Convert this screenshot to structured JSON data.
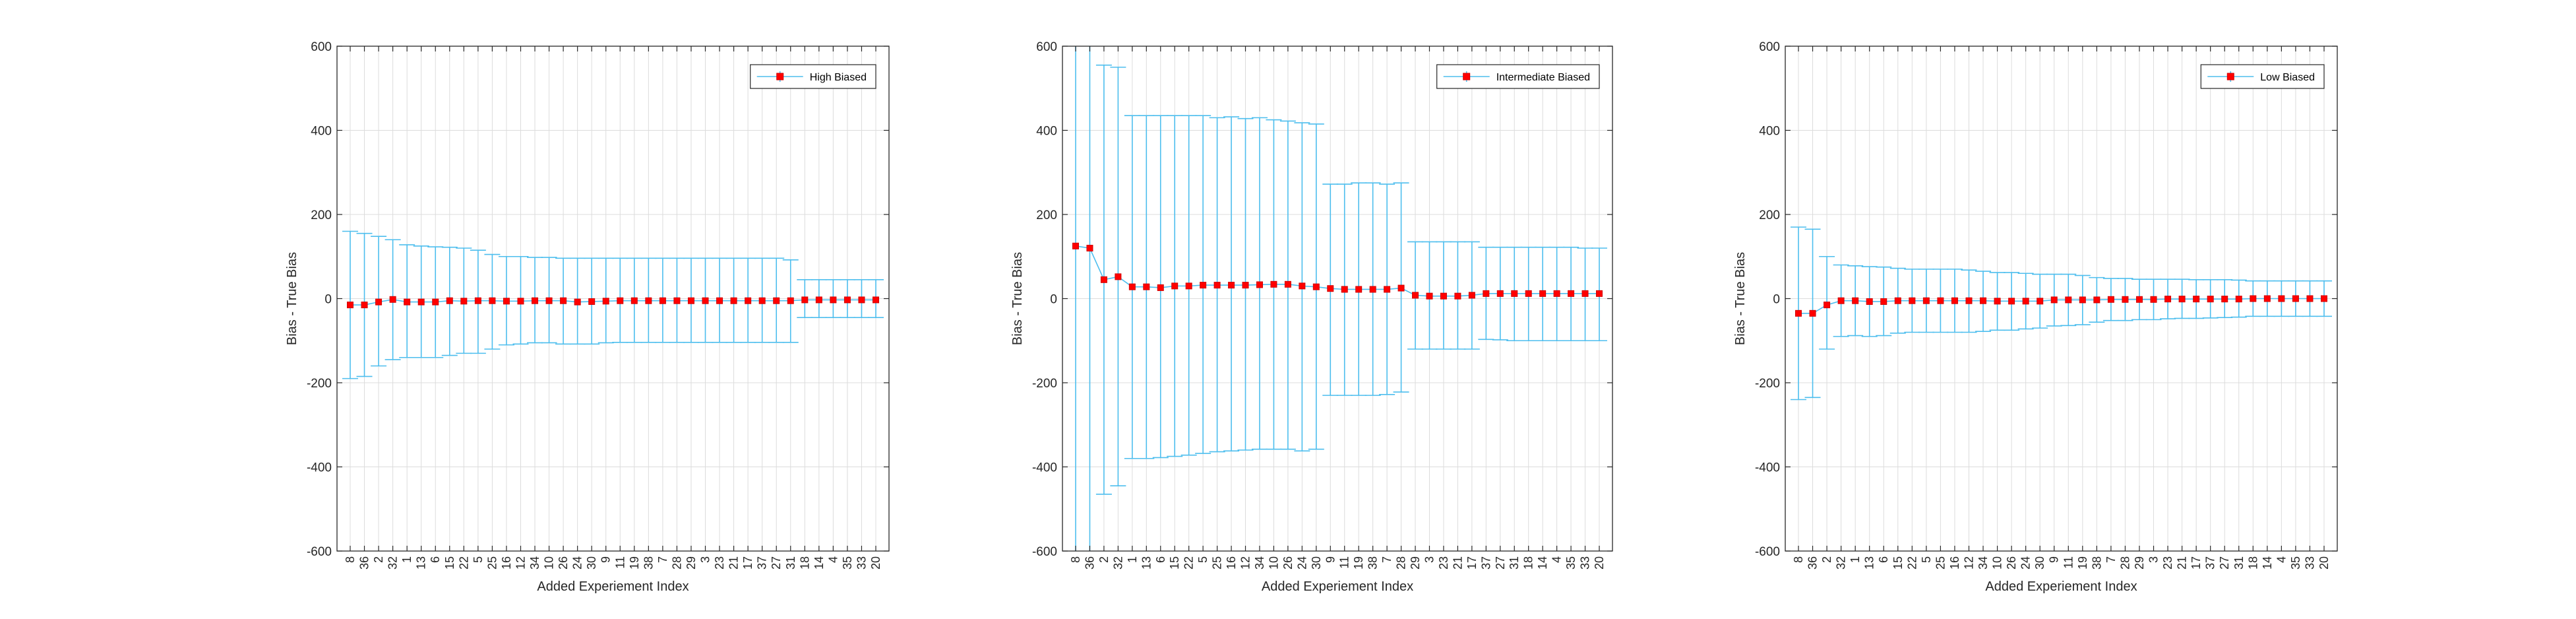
{
  "figure": {
    "colors": {
      "errorbar": "#4DBEEE",
      "marker": "#FF0000",
      "marker_edge": "#D00000",
      "axis": "#262626",
      "grid": "#DCDCDC",
      "background": "#FFFFFF"
    }
  },
  "chart_data": [
    {
      "type": "line",
      "subtype": "errorbar",
      "xlabel": "Added Experiement Index",
      "ylabel": "Bias - True Bias",
      "ylim": [
        -600,
        600
      ],
      "yticks": [
        -600,
        -400,
        -200,
        0,
        200,
        400,
        600
      ],
      "grid": true,
      "legend": {
        "placement": "top-right",
        "entries": [
          "High Biased"
        ]
      },
      "categories": [
        "8",
        "36",
        "2",
        "32",
        "1",
        "13",
        "6",
        "15",
        "22",
        "5",
        "25",
        "16",
        "12",
        "34",
        "10",
        "26",
        "24",
        "30",
        "9",
        "11",
        "19",
        "38",
        "7",
        "28",
        "29",
        "3",
        "23",
        "21",
        "17",
        "37",
        "27",
        "31",
        "18",
        "14",
        "4",
        "35",
        "33",
        "20"
      ],
      "series": [
        {
          "name": "High Biased",
          "values": [
            -15,
            -15,
            -8,
            -2,
            -8,
            -8,
            -8,
            -5,
            -6,
            -5,
            -5,
            -6,
            -6,
            -5,
            -5,
            -5,
            -8,
            -7,
            -6,
            -5,
            -5,
            -5,
            -5,
            -5,
            -5,
            -5,
            -5,
            -5,
            -5,
            -5,
            -5,
            -5,
            -3,
            -3,
            -3,
            -3,
            -3,
            -3
          ],
          "upper": [
            160,
            155,
            148,
            140,
            128,
            125,
            123,
            122,
            120,
            115,
            105,
            100,
            100,
            98,
            98,
            96,
            96,
            96,
            96,
            96,
            96,
            96,
            96,
            96,
            96,
            96,
            96,
            96,
            96,
            96,
            96,
            92,
            45,
            45,
            45,
            45,
            45,
            45
          ],
          "lower": [
            -190,
            -185,
            -160,
            -145,
            -140,
            -140,
            -140,
            -135,
            -130,
            -130,
            -120,
            -110,
            -108,
            -105,
            -105,
            -108,
            -108,
            -108,
            -105,
            -104,
            -104,
            -104,
            -104,
            -104,
            -104,
            -104,
            -104,
            -104,
            -104,
            -104,
            -104,
            -104,
            -45,
            -45,
            -45,
            -45,
            -45,
            -45
          ]
        }
      ]
    },
    {
      "type": "line",
      "subtype": "errorbar",
      "xlabel": "Added Experiement Index",
      "ylabel": "Bias - True Bias",
      "ylim": [
        -600,
        600
      ],
      "yticks": [
        -600,
        -400,
        -200,
        0,
        200,
        400,
        600
      ],
      "grid": true,
      "legend": {
        "placement": "top-right",
        "entries": [
          "Intermediate Biased"
        ]
      },
      "categories": [
        "8",
        "36",
        "2",
        "32",
        "1",
        "13",
        "6",
        "15",
        "22",
        "5",
        "25",
        "16",
        "12",
        "34",
        "10",
        "26",
        "24",
        "30",
        "9",
        "11",
        "19",
        "38",
        "7",
        "28",
        "29",
        "3",
        "23",
        "21",
        "17",
        "37",
        "27",
        "31",
        "18",
        "14",
        "4",
        "35",
        "33",
        "20"
      ],
      "series": [
        {
          "name": "Intermediate Biased",
          "values": [
            125,
            120,
            45,
            52,
            28,
            28,
            26,
            30,
            30,
            32,
            32,
            32,
            32,
            33,
            34,
            34,
            30,
            28,
            24,
            22,
            22,
            22,
            22,
            25,
            8,
            6,
            6,
            6,
            8,
            12,
            12,
            12,
            12,
            12,
            12,
            12,
            12,
            12
          ],
          "upper": [
            620,
            620,
            555,
            550,
            435,
            435,
            435,
            435,
            435,
            435,
            430,
            432,
            428,
            430,
            425,
            422,
            418,
            415,
            272,
            272,
            275,
            275,
            272,
            275,
            135,
            135,
            135,
            135,
            135,
            122,
            122,
            122,
            122,
            122,
            122,
            122,
            120,
            120
          ],
          "lower": [
            -620,
            -620,
            -465,
            -445,
            -380,
            -380,
            -378,
            -375,
            -372,
            -368,
            -364,
            -362,
            -360,
            -358,
            -358,
            -358,
            -362,
            -358,
            -230,
            -230,
            -230,
            -230,
            -228,
            -222,
            -120,
            -120,
            -120,
            -120,
            -120,
            -97,
            -98,
            -100,
            -100,
            -100,
            -100,
            -100,
            -100,
            -100
          ]
        }
      ]
    },
    {
      "type": "line",
      "subtype": "errorbar",
      "xlabel": "Added Experiement Index",
      "ylabel": "Bias - True Bias",
      "ylim": [
        -600,
        600
      ],
      "yticks": [
        -600,
        -400,
        -200,
        0,
        200,
        400,
        600
      ],
      "grid": true,
      "legend": {
        "placement": "top-right",
        "entries": [
          "Low Biased"
        ]
      },
      "categories": [
        "8",
        "36",
        "2",
        "32",
        "1",
        "13",
        "6",
        "15",
        "22",
        "5",
        "25",
        "16",
        "12",
        "34",
        "10",
        "26",
        "24",
        "30",
        "9",
        "11",
        "19",
        "38",
        "7",
        "28",
        "29",
        "3",
        "23",
        "21",
        "17",
        "37",
        "27",
        "31",
        "18",
        "14",
        "4",
        "35",
        "33",
        "20"
      ],
      "series": [
        {
          "name": "Low Biased",
          "values": [
            -35,
            -35,
            -15,
            -5,
            -5,
            -7,
            -7,
            -5,
            -5,
            -5,
            -5,
            -5,
            -5,
            -5,
            -6,
            -6,
            -6,
            -6,
            -3,
            -3,
            -3,
            -3,
            -2,
            -2,
            -2,
            -2,
            -1,
            -1,
            -1,
            -1,
            -1,
            -1,
            0,
            0,
            0,
            0,
            0,
            0
          ],
          "upper": [
            170,
            165,
            100,
            80,
            78,
            76,
            75,
            72,
            70,
            70,
            70,
            70,
            68,
            65,
            62,
            62,
            60,
            58,
            58,
            58,
            55,
            50,
            48,
            48,
            46,
            46,
            46,
            46,
            45,
            45,
            45,
            44,
            42,
            42,
            42,
            42,
            42,
            42
          ],
          "lower": [
            -240,
            -235,
            -120,
            -90,
            -88,
            -90,
            -88,
            -82,
            -80,
            -80,
            -80,
            -80,
            -80,
            -78,
            -75,
            -75,
            -72,
            -70,
            -65,
            -64,
            -62,
            -56,
            -52,
            -52,
            -50,
            -50,
            -48,
            -47,
            -47,
            -46,
            -45,
            -44,
            -42,
            -42,
            -42,
            -42,
            -42,
            -42
          ]
        }
      ]
    }
  ]
}
